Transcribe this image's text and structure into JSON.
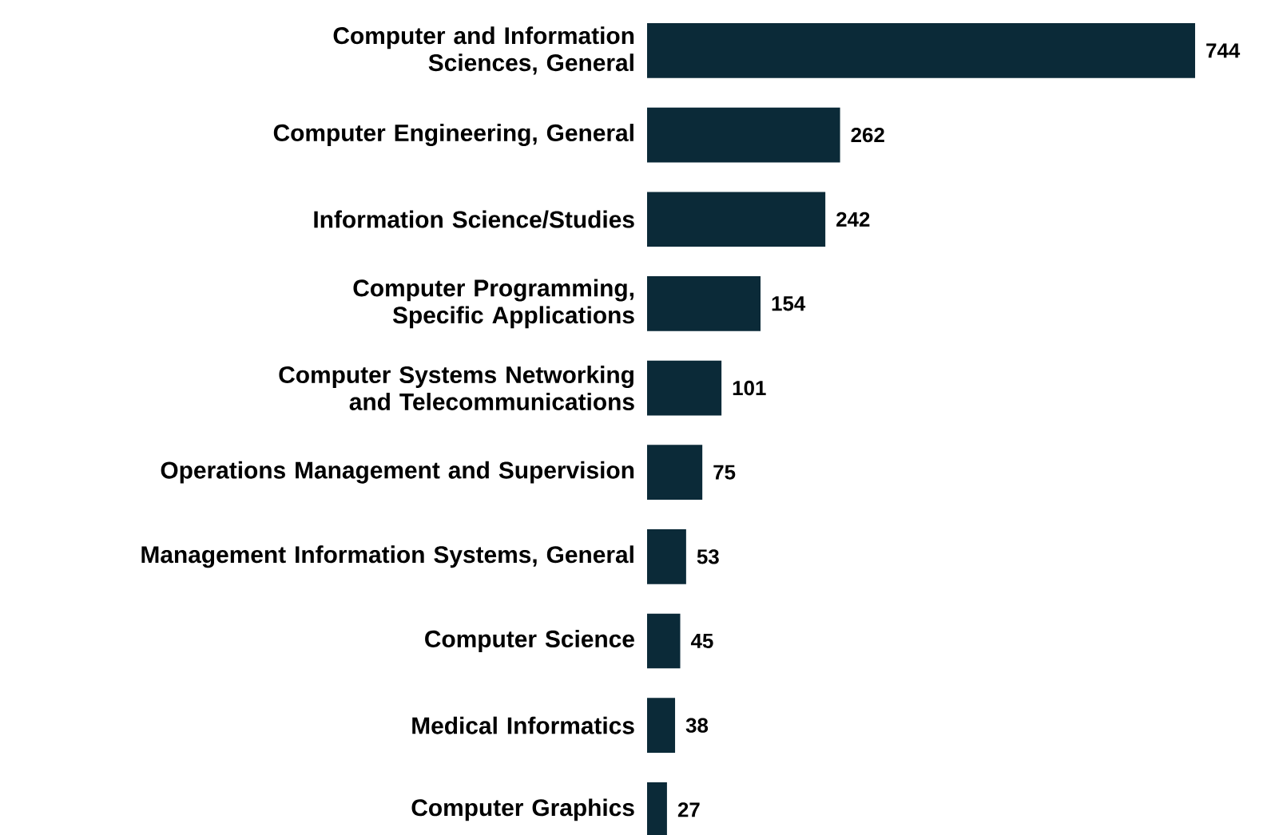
{
  "chart_data": {
    "type": "bar",
    "orientation": "horizontal",
    "data_labels": true,
    "color": "#0b2a38",
    "categories": [
      "Computer and Information Sciences, General",
      "Computer Engineering, General",
      "Information Science/Studies",
      "Computer Programming, Specific Applications",
      "Computer Systems Networking and Telecommunications",
      "Operations Management and Supervision",
      "Management Information Systems, General",
      "Computer Science",
      "Medical Informatics",
      "Computer Graphics"
    ],
    "values": [
      744,
      262,
      242,
      154,
      101,
      75,
      53,
      45,
      38,
      27
    ]
  }
}
